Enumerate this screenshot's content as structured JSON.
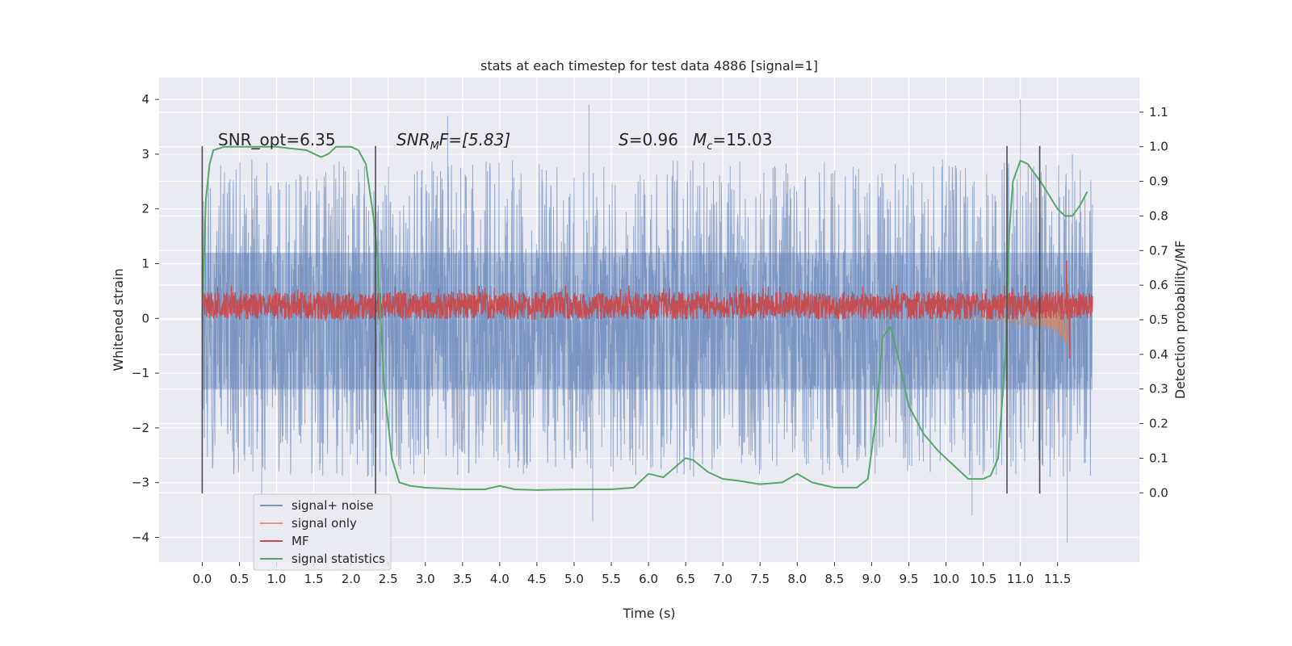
{
  "chart_data": {
    "type": "line",
    "title": "stats at each timestep for test data 4886 [signal=1]",
    "xlabel": "Time (s)",
    "ylabel_left": "Whitened strain",
    "ylabel_right": "Detection probability/MF",
    "xlim": [
      -0.58,
      12.6
    ],
    "ylim_left": [
      -4.45,
      4.4
    ],
    "ylim_right": [
      -0.2,
      1.2
    ],
    "x_ticks": [
      "0.0",
      "0.5",
      "1.0",
      "1.5",
      "2.0",
      "2.5",
      "3.0",
      "3.5",
      "4.0",
      "4.5",
      "5.0",
      "5.5",
      "6.0",
      "6.5",
      "7.0",
      "7.5",
      "8.0",
      "8.5",
      "9.0",
      "9.5",
      "10.0",
      "10.5",
      "11.0",
      "11.5"
    ],
    "y_ticks_left": [
      "4",
      "3",
      "2",
      "1",
      "0",
      "−1",
      "−2",
      "−3",
      "−4"
    ],
    "y_ticks_right": [
      "1.1",
      "1.0",
      "0.9",
      "0.8",
      "0.7",
      "0.6",
      "0.5",
      "0.4",
      "0.3",
      "0.2",
      "0.1",
      "0.0"
    ],
    "grid": true,
    "legend_position": "lower-left",
    "annotations": {
      "snr_opt": "SNR_opt=6.35",
      "snr_mf_var": "SNR",
      "snr_mf_sub": "M",
      "snr_mf_rest": "F=[5.83]",
      "s_var": "S",
      "s_value": "=0.96",
      "mc_var": "M",
      "mc_sub": "c",
      "mc_value": "=15.03"
    },
    "vertical_markers_x": [
      0.0,
      2.33,
      10.82,
      11.26
    ],
    "marker_color": "#4d4d4d",
    "series": [
      {
        "name": "signal+ noise",
        "color": "#4c72b0",
        "axis": "left",
        "kind": "noise_band",
        "x_range": [
          0.0,
          11.97
        ],
        "core_band": [
          -1.3,
          1.2
        ],
        "envelope": [
          -2.9,
          2.9
        ],
        "extreme_peaks": [
          [
            0.8,
            -3.3
          ],
          [
            3.3,
            3.7
          ],
          [
            5.2,
            3.9
          ],
          [
            5.25,
            -3.7
          ],
          [
            10.35,
            -3.6
          ],
          [
            11.0,
            4.0
          ],
          [
            11.63,
            -4.1
          ],
          [
            11.7,
            3.0
          ]
        ]
      },
      {
        "name": "signal only",
        "color": "#dd8452",
        "axis": "left",
        "kind": "chirp",
        "x": [
          10.0,
          10.4,
          10.8,
          11.0,
          11.2,
          11.4,
          11.5,
          11.6,
          11.65
        ],
        "envelope": [
          0.02,
          0.04,
          0.08,
          0.11,
          0.15,
          0.22,
          0.3,
          0.45,
          0.65
        ]
      },
      {
        "name": "MF",
        "color": "#c44e52",
        "axis": "right",
        "kind": "noisy_line",
        "x_range": [
          0.0,
          11.97
        ],
        "base": 0.535,
        "spread": [
          0.5,
          0.58
        ],
        "peaks": [
          [
            11.62,
            0.67
          ],
          [
            11.66,
            0.39
          ]
        ]
      },
      {
        "name": "signal statistics",
        "color": "#55a868",
        "axis": "right",
        "kind": "line",
        "x": [
          0.0,
          0.05,
          0.1,
          0.15,
          0.3,
          0.6,
          1.0,
          1.4,
          1.6,
          1.7,
          1.8,
          1.9,
          2.0,
          2.1,
          2.2,
          2.3,
          2.35,
          2.45,
          2.55,
          2.65,
          2.8,
          3.0,
          3.5,
          3.8,
          4.0,
          4.2,
          4.5,
          5.0,
          5.5,
          5.8,
          6.0,
          6.2,
          6.5,
          6.6,
          6.8,
          7.0,
          7.2,
          7.5,
          7.8,
          8.0,
          8.2,
          8.5,
          8.8,
          8.95,
          9.05,
          9.15,
          9.25,
          9.35,
          9.5,
          9.7,
          9.9,
          10.1,
          10.3,
          10.5,
          10.6,
          10.7,
          10.8,
          10.85,
          10.9,
          11.0,
          11.1,
          11.3,
          11.5,
          11.6,
          11.7,
          11.8,
          11.9
        ],
        "y": [
          0.5,
          0.85,
          0.95,
          0.99,
          1.0,
          1.0,
          1.0,
          0.99,
          0.97,
          0.98,
          1.0,
          1.0,
          1.0,
          0.99,
          0.95,
          0.8,
          0.7,
          0.3,
          0.1,
          0.03,
          0.02,
          0.015,
          0.01,
          0.01,
          0.02,
          0.01,
          0.008,
          0.01,
          0.01,
          0.015,
          0.055,
          0.045,
          0.1,
          0.095,
          0.06,
          0.04,
          0.035,
          0.025,
          0.03,
          0.055,
          0.03,
          0.015,
          0.015,
          0.04,
          0.2,
          0.45,
          0.48,
          0.4,
          0.25,
          0.17,
          0.12,
          0.08,
          0.04,
          0.04,
          0.05,
          0.1,
          0.4,
          0.75,
          0.9,
          0.96,
          0.95,
          0.89,
          0.82,
          0.8,
          0.8,
          0.83,
          0.87
        ]
      }
    ]
  }
}
